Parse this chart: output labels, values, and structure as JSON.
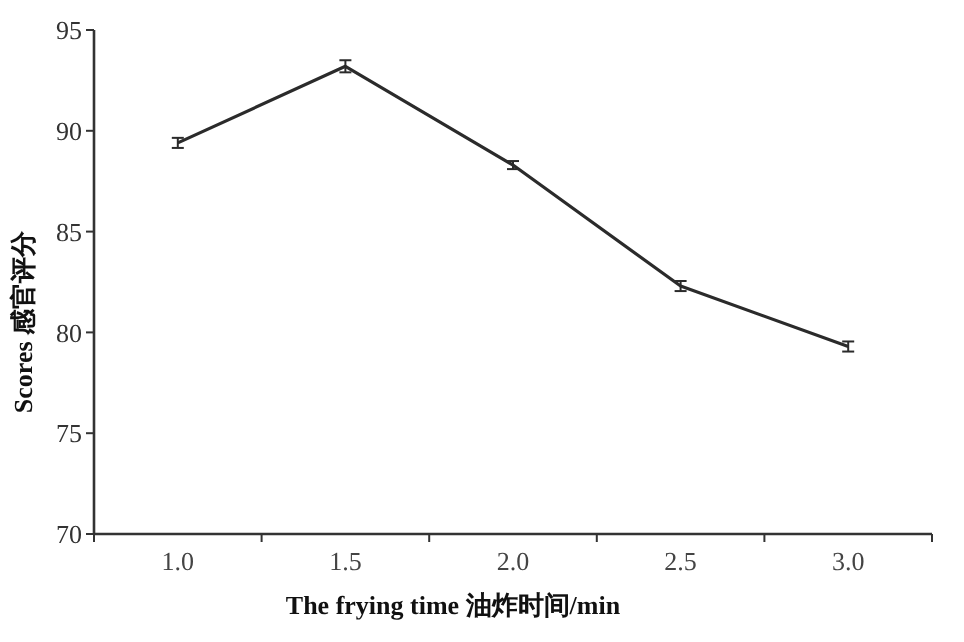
{
  "chart_data": {
    "type": "line",
    "xlabel": "The frying time  油炸时间/min",
    "ylabel": "Scores  感官评分",
    "categories": [
      "1.0",
      "1.5",
      "2.0",
      "2.5",
      "3.0"
    ],
    "series": [
      {
        "color": "#2b2b2b",
        "values": [
          89.4,
          93.2,
          88.3,
          82.3,
          79.3
        ],
        "errors": [
          0.25,
          0.3,
          0.2,
          0.25,
          0.25
        ]
      }
    ],
    "ylim": [
      70,
      95
    ],
    "yticks": [
      70,
      75,
      80,
      85,
      90,
      95
    ],
    "grid": false,
    "marker": "none",
    "line_style": "solid"
  }
}
